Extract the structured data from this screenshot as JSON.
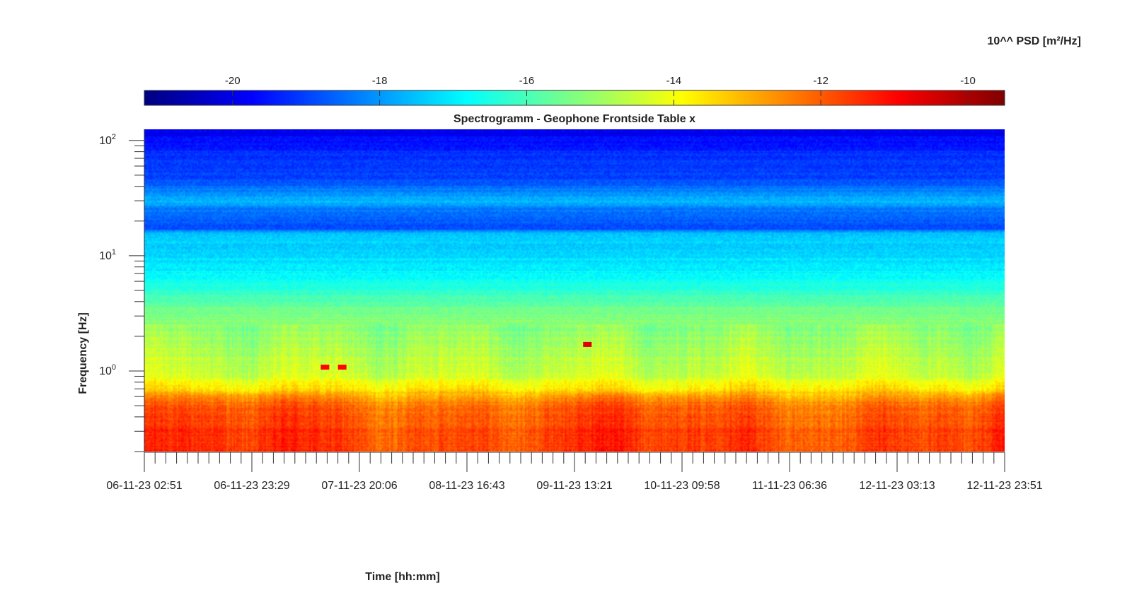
{
  "chart_data": {
    "type": "heatmap",
    "title": "Spectrogramm - Geophone Frontside Table x",
    "xlabel": "Time [hh:mm]",
    "ylabel": "Frequency [Hz]",
    "y_scale": "log",
    "ylim": [
      0.2,
      125
    ],
    "y_tick_values": [
      1,
      10,
      100
    ],
    "y_tick_labels": [
      {
        "base": "10",
        "exp": "0"
      },
      {
        "base": "10",
        "exp": "1"
      },
      {
        "base": "10",
        "exp": "2"
      }
    ],
    "x_tick_labels": [
      "06-11-23 02:51",
      "06-11-23 23:29",
      "07-11-23 20:06",
      "08-11-23 16:43",
      "09-11-23 13:21",
      "10-11-23 09:58",
      "11-11-23 06:36",
      "12-11-23 03:13",
      "12-11-23 23:51"
    ],
    "colorbar": {
      "label": "10^^ PSD [m²/Hz]",
      "range": [
        -21.2,
        -9.5
      ],
      "ticks": [
        -20,
        -18,
        -16,
        -14,
        -12,
        -10
      ],
      "colormap": "jet"
    },
    "spectral_profile": {
      "frequency_hz": [
        0.2,
        0.35,
        0.55,
        0.7,
        0.9,
        1.5,
        3.5,
        5,
        7,
        9,
        12,
        16,
        17,
        25,
        30,
        34,
        45,
        80,
        100,
        125
      ],
      "log10_psd": [
        -11.6,
        -11.8,
        -12.3,
        -13.6,
        -14.4,
        -14.8,
        -15.5,
        -16.3,
        -16.9,
        -17.2,
        -17.3,
        -17.6,
        -18.8,
        -18.4,
        -17.6,
        -18.0,
        -18.9,
        -19.3,
        -19.6,
        -20.0
      ]
    },
    "annotations": [
      {
        "time_fraction": 0.21,
        "frequency_hz": 1.08,
        "log10_psd": -11.0
      },
      {
        "time_fraction": 0.23,
        "frequency_hz": 1.08,
        "log10_psd": -11.0
      },
      {
        "time_fraction": 0.515,
        "frequency_hz": 1.7,
        "log10_psd": -10.6
      }
    ]
  }
}
